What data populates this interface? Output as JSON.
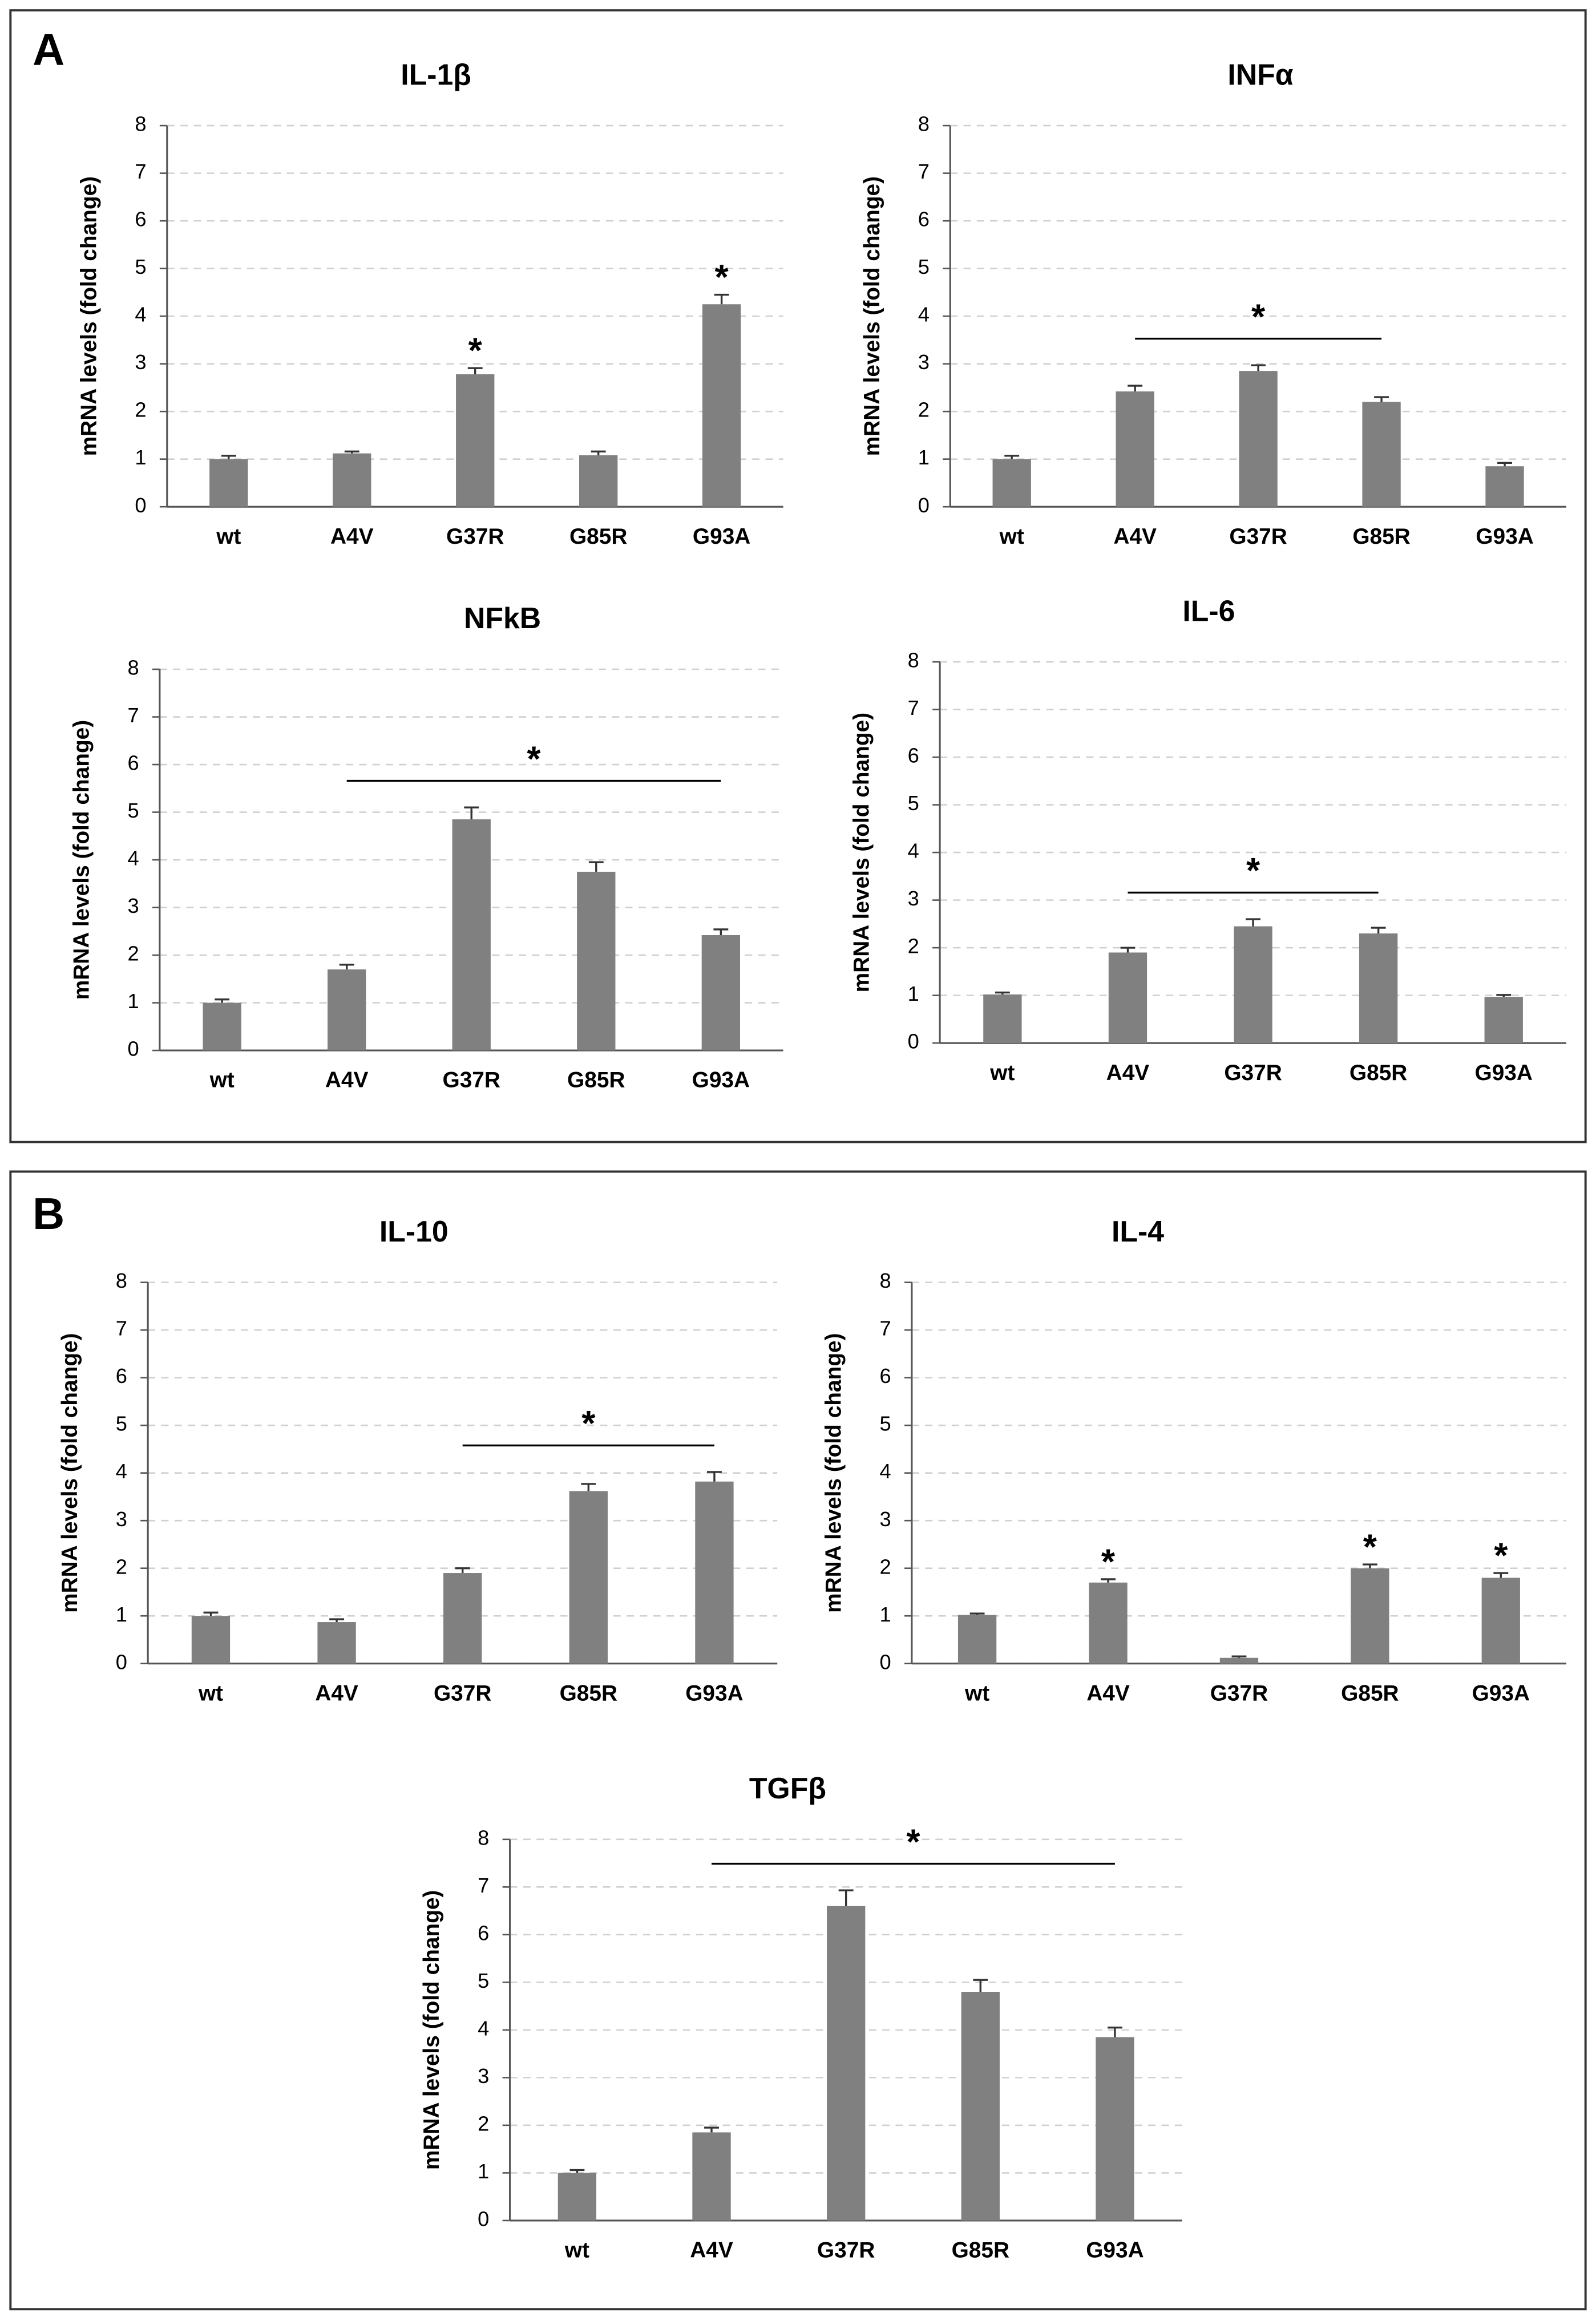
{
  "panels": [
    {
      "label": "A"
    },
    {
      "label": "B"
    }
  ],
  "chart_data": [
    {
      "type": "bar",
      "title": "IL-1β",
      "y_label": "mRNA levels (fold change)",
      "categories": [
        "wt",
        "A4V",
        "G37R",
        "G85R",
        "G93A"
      ],
      "values": [
        1.0,
        1.12,
        2.78,
        1.08,
        4.25
      ],
      "errors": [
        0.07,
        0.04,
        0.13,
        0.08,
        0.2
      ],
      "color": "#808080",
      "ylim": [
        0,
        8
      ],
      "yticks": [
        0,
        1,
        2,
        3,
        4,
        5,
        6,
        7,
        8
      ],
      "grid": true,
      "annotations": [
        {
          "text": "*",
          "categories": [
            2
          ]
        },
        {
          "text": "*",
          "categories": [
            4
          ]
        }
      ]
    },
    {
      "type": "bar",
      "title": "INFα",
      "y_label": "mRNA levels (fold change)",
      "categories": [
        "wt",
        "A4V",
        "G37R",
        "G85R",
        "G93A"
      ],
      "values": [
        1.0,
        2.42,
        2.85,
        2.2,
        0.85
      ],
      "errors": [
        0.07,
        0.12,
        0.12,
        0.1,
        0.07
      ],
      "color": "#808080",
      "ylim": [
        0,
        8
      ],
      "yticks": [
        0,
        1,
        2,
        3,
        4,
        5,
        6,
        7,
        8
      ],
      "grid": true,
      "annotations": [
        {
          "text": "*",
          "categories": [
            1,
            3
          ]
        }
      ]
    },
    {
      "type": "bar",
      "title": "NFkB",
      "y_label": "mRNA levels (fold change)",
      "categories": [
        "wt",
        "A4V",
        "G37R",
        "G85R",
        "G93A"
      ],
      "values": [
        1.0,
        1.7,
        4.85,
        3.75,
        2.42
      ],
      "errors": [
        0.07,
        0.1,
        0.25,
        0.2,
        0.12
      ],
      "color": "#808080",
      "ylim": [
        0,
        8
      ],
      "yticks": [
        0,
        1,
        2,
        3,
        4,
        5,
        6,
        7,
        8
      ],
      "grid": true,
      "annotations": [
        {
          "text": "*",
          "categories": [
            1,
            4
          ]
        }
      ]
    },
    {
      "type": "bar",
      "title": "IL-6",
      "y_label": "mRNA levels (fold change)",
      "categories": [
        "wt",
        "A4V",
        "G37R",
        "G85R",
        "G93A"
      ],
      "values": [
        1.02,
        1.9,
        2.45,
        2.3,
        0.97
      ],
      "errors": [
        0.04,
        0.1,
        0.15,
        0.12,
        0.04
      ],
      "color": "#808080",
      "ylim": [
        0,
        8
      ],
      "yticks": [
        0,
        1,
        2,
        3,
        4,
        5,
        6,
        7,
        8
      ],
      "grid": true,
      "annotations": [
        {
          "text": "*",
          "categories": [
            1,
            3
          ]
        }
      ]
    },
    {
      "type": "bar",
      "title": "IL-10",
      "y_label": "mRNA levels (fold change)",
      "categories": [
        "wt",
        "A4V",
        "G37R",
        "G85R",
        "G93A"
      ],
      "values": [
        1.0,
        0.87,
        1.9,
        3.62,
        3.82
      ],
      "errors": [
        0.07,
        0.06,
        0.1,
        0.15,
        0.2
      ],
      "color": "#808080",
      "ylim": [
        0,
        8
      ],
      "yticks": [
        0,
        1,
        2,
        3,
        4,
        5,
        6,
        7,
        8
      ],
      "grid": true,
      "annotations": [
        {
          "text": "*",
          "categories": [
            2,
            4
          ]
        }
      ]
    },
    {
      "type": "bar",
      "title": "IL-4",
      "y_label": "mRNA levels (fold change)",
      "categories": [
        "wt",
        "A4V",
        "G37R",
        "G85R",
        "G93A"
      ],
      "values": [
        1.02,
        1.7,
        0.12,
        2.0,
        1.8
      ],
      "errors": [
        0.03,
        0.07,
        0.03,
        0.08,
        0.1
      ],
      "color": "#808080",
      "ylim": [
        0,
        8
      ],
      "yticks": [
        0,
        1,
        2,
        3,
        4,
        5,
        6,
        7,
        8
      ],
      "grid": true,
      "annotations": [
        {
          "text": "*",
          "categories": [
            1
          ]
        },
        {
          "text": "*",
          "categories": [
            3
          ]
        },
        {
          "text": "*",
          "categories": [
            4
          ]
        }
      ]
    },
    {
      "type": "bar",
      "title": "TGFβ",
      "y_label": "mRNA levels (fold change)",
      "categories": [
        "wt",
        "A4V",
        "G37R",
        "G85R",
        "G93A"
      ],
      "values": [
        1.0,
        1.85,
        6.6,
        4.8,
        3.85
      ],
      "errors": [
        0.06,
        0.1,
        0.33,
        0.25,
        0.2
      ],
      "color": "#808080",
      "ylim": [
        0,
        8
      ],
      "yticks": [
        0,
        1,
        2,
        3,
        4,
        5,
        6,
        7,
        8
      ],
      "grid": true,
      "annotations": [
        {
          "text": "*",
          "categories": [
            1,
            4
          ]
        }
      ]
    }
  ]
}
